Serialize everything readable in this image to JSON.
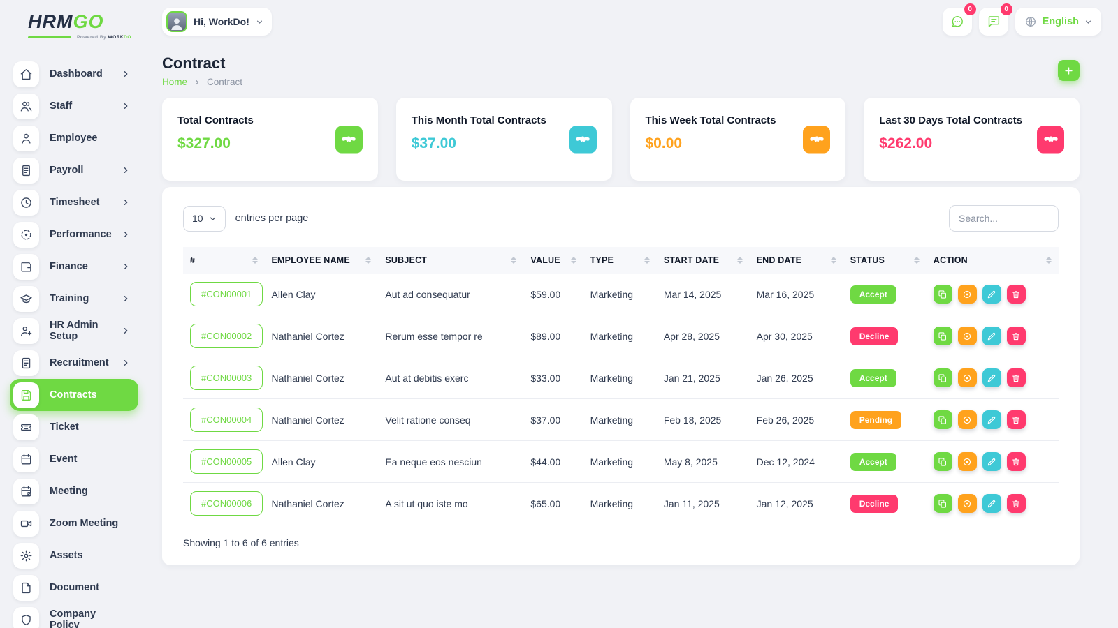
{
  "brand": {
    "name_primary": "HRM",
    "name_secondary": "GO",
    "powered_prefix": "Powered By",
    "powered_brand_dark": "WORK",
    "powered_brand_green": "DO"
  },
  "topbar": {
    "greeting": "Hi, WorkDo!",
    "chat_badge": "0",
    "mail_badge": "0",
    "language": "English"
  },
  "sidebar": {
    "items": [
      {
        "id": "dashboard",
        "label": "Dashboard",
        "icon": "home",
        "chevron": true,
        "active": false
      },
      {
        "id": "staff",
        "label": "Staff",
        "icon": "users",
        "chevron": true,
        "active": false
      },
      {
        "id": "employee",
        "label": "Employee",
        "icon": "user",
        "chevron": false,
        "active": false
      },
      {
        "id": "payroll",
        "label": "Payroll",
        "icon": "invoice",
        "chevron": true,
        "active": false
      },
      {
        "id": "timesheet",
        "label": "Timesheet",
        "icon": "clock",
        "chevron": true,
        "active": false
      },
      {
        "id": "performance",
        "label": "Performance",
        "icon": "focus",
        "chevron": true,
        "active": false
      },
      {
        "id": "finance",
        "label": "Finance",
        "icon": "wallet",
        "chevron": true,
        "active": false
      },
      {
        "id": "training",
        "label": "Training",
        "icon": "graduation",
        "chevron": true,
        "active": false
      },
      {
        "id": "hr-admin-setup",
        "label": "HR Admin Setup",
        "icon": "user-plus",
        "chevron": true,
        "active": false
      },
      {
        "id": "recruitment",
        "label": "Recruitment",
        "icon": "scroll",
        "chevron": true,
        "active": false
      },
      {
        "id": "contracts",
        "label": "Contracts",
        "icon": "save",
        "chevron": false,
        "active": true
      },
      {
        "id": "ticket",
        "label": "Ticket",
        "icon": "ticket",
        "chevron": false,
        "active": false
      },
      {
        "id": "event",
        "label": "Event",
        "icon": "calendar",
        "chevron": false,
        "active": false
      },
      {
        "id": "meeting",
        "label": "Meeting",
        "icon": "calendar-check",
        "chevron": false,
        "active": false
      },
      {
        "id": "zoom-meeting",
        "label": "Zoom Meeting",
        "icon": "video",
        "chevron": false,
        "active": false
      },
      {
        "id": "assets",
        "label": "Assets",
        "icon": "gear",
        "chevron": false,
        "active": false
      },
      {
        "id": "document",
        "label": "Document",
        "icon": "file",
        "chevron": false,
        "active": false
      },
      {
        "id": "company-policy",
        "label": "Company Policy",
        "icon": "policy",
        "chevron": false,
        "active": false
      }
    ]
  },
  "page": {
    "title": "Contract",
    "breadcrumb_home": "Home",
    "breadcrumb_current": "Contract"
  },
  "stats": {
    "cards": [
      {
        "label": "Total Contracts",
        "value": "$327.00",
        "color": "#6fd943"
      },
      {
        "label": "This Month Total Contracts",
        "value": "$37.00",
        "color": "#3ec9d6"
      },
      {
        "label": "This Week Total Contracts",
        "value": "$0.00",
        "color": "#ffa21d"
      },
      {
        "label": "Last 30 Days Total Contracts",
        "value": "$262.00",
        "color": "#ff3a6e"
      }
    ]
  },
  "table": {
    "entries_value": "10",
    "entries_label": "entries per page",
    "search_placeholder": "Search...",
    "columns": [
      "#",
      "EMPLOYEE NAME",
      "SUBJECT",
      "VALUE",
      "TYPE",
      "START DATE",
      "END DATE",
      "STATUS",
      "ACTION"
    ],
    "status_colors": {
      "Accept": "#6fd943",
      "Decline": "#ff3a6e",
      "Pending": "#ffa21d"
    },
    "actions": [
      {
        "name": "duplicate",
        "icon": "copy",
        "color": "#6fd943"
      },
      {
        "name": "view",
        "icon": "eye",
        "color": "#ffa21d"
      },
      {
        "name": "edit",
        "icon": "pencil",
        "color": "#3ec9d6"
      },
      {
        "name": "delete",
        "icon": "trash",
        "color": "#ff3a6e"
      }
    ],
    "rows": [
      {
        "id": "#CON00001",
        "employee": "Allen Clay",
        "subject": "Aut ad consequatur",
        "value": "$59.00",
        "type": "Marketing",
        "start": "Mar 14, 2025",
        "end": "Mar 16, 2025",
        "status": "Accept"
      },
      {
        "id": "#CON00002",
        "employee": "Nathaniel Cortez",
        "subject": "Rerum esse tempor re",
        "value": "$89.00",
        "type": "Marketing",
        "start": "Apr 28, 2025",
        "end": "Apr 30, 2025",
        "status": "Decline"
      },
      {
        "id": "#CON00003",
        "employee": "Nathaniel Cortez",
        "subject": "Aut at debitis exerc",
        "value": "$33.00",
        "type": "Marketing",
        "start": "Jan 21, 2025",
        "end": "Jan 26, 2025",
        "status": "Accept"
      },
      {
        "id": "#CON00004",
        "employee": "Nathaniel Cortez",
        "subject": "Velit ratione conseq",
        "value": "$37.00",
        "type": "Marketing",
        "start": "Feb 18, 2025",
        "end": "Feb 26, 2025",
        "status": "Pending"
      },
      {
        "id": "#CON00005",
        "employee": "Allen Clay",
        "subject": "Ea neque eos nesciun",
        "value": "$44.00",
        "type": "Marketing",
        "start": "May 8, 2025",
        "end": "Dec 12, 2024",
        "status": "Accept"
      },
      {
        "id": "#CON00006",
        "employee": "Nathaniel Cortez",
        "subject": "A sit ut quo iste mo",
        "value": "$65.00",
        "type": "Marketing",
        "start": "Jan 11, 2025",
        "end": "Jan 12, 2025",
        "status": "Decline"
      }
    ],
    "footer": "Showing 1 to 6 of 6 entries"
  }
}
